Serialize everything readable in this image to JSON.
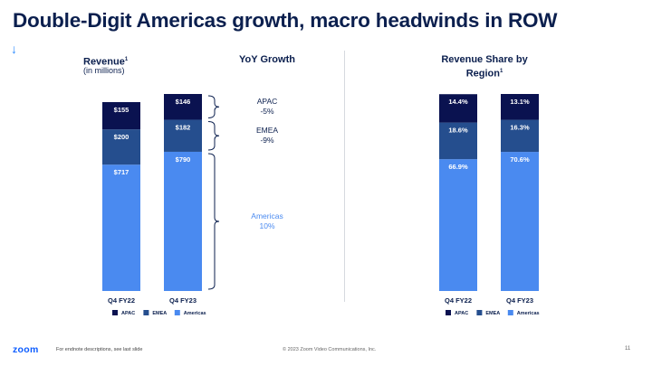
{
  "title": "Double-Digit Americas growth, macro headwinds in ROW",
  "arrow": "↓",
  "left_header": {
    "label": "Revenue",
    "note": "1",
    "sub": "(in millions)"
  },
  "mid_header": "YoY Growth",
  "right_header": {
    "line1": "Revenue Share by",
    "line2": "Region",
    "note": "1"
  },
  "growth": [
    {
      "region": "APAC",
      "value": "-5%"
    },
    {
      "region": "EMEA",
      "value": "-9%"
    },
    {
      "region": "Americas",
      "value": "10%"
    }
  ],
  "colors": {
    "APAC": "#0a1250",
    "EMEA": "#254e8e",
    "Americas": "#4a8af0",
    "growth_americas": "#4a8af0",
    "brace": "#0b1f4e"
  },
  "chart_data": [
    {
      "type": "bar",
      "stacked": true,
      "title": "Revenue (in millions)",
      "categories": [
        "Q4 FY22",
        "Q4 FY23"
      ],
      "series": [
        {
          "name": "Americas",
          "values": [
            717,
            790
          ],
          "labels": [
            "$717",
            "$790"
          ]
        },
        {
          "name": "EMEA",
          "values": [
            200,
            182
          ],
          "labels": [
            "$200",
            "$182"
          ]
        },
        {
          "name": "APAC",
          "values": [
            155,
            146
          ],
          "labels": [
            "$155",
            "$146"
          ]
        }
      ],
      "legend": [
        "APAC",
        "EMEA",
        "Americas"
      ],
      "ylim": [
        0,
        1118
      ]
    },
    {
      "type": "bar",
      "stacked": true,
      "title": "Revenue Share by Region",
      "categories": [
        "Q4 FY22",
        "Q4 FY23"
      ],
      "series": [
        {
          "name": "Americas",
          "values": [
            66.9,
            70.6
          ],
          "labels": [
            "66.9%",
            "70.6%"
          ]
        },
        {
          "name": "EMEA",
          "values": [
            18.6,
            16.3
          ],
          "labels": [
            "18.6%",
            "16.3%"
          ]
        },
        {
          "name": "APAC",
          "values": [
            14.4,
            13.1
          ],
          "labels": [
            "14.4%",
            "13.1%"
          ]
        }
      ],
      "legend": [
        "APAC",
        "EMEA",
        "Americas"
      ],
      "ylim": [
        0,
        100
      ]
    }
  ],
  "footer": {
    "logo": "zoom",
    "note": "For endnote descriptions, see last slide",
    "copyright": "© 2023 Zoom Video Communications, Inc.",
    "page": "11"
  }
}
